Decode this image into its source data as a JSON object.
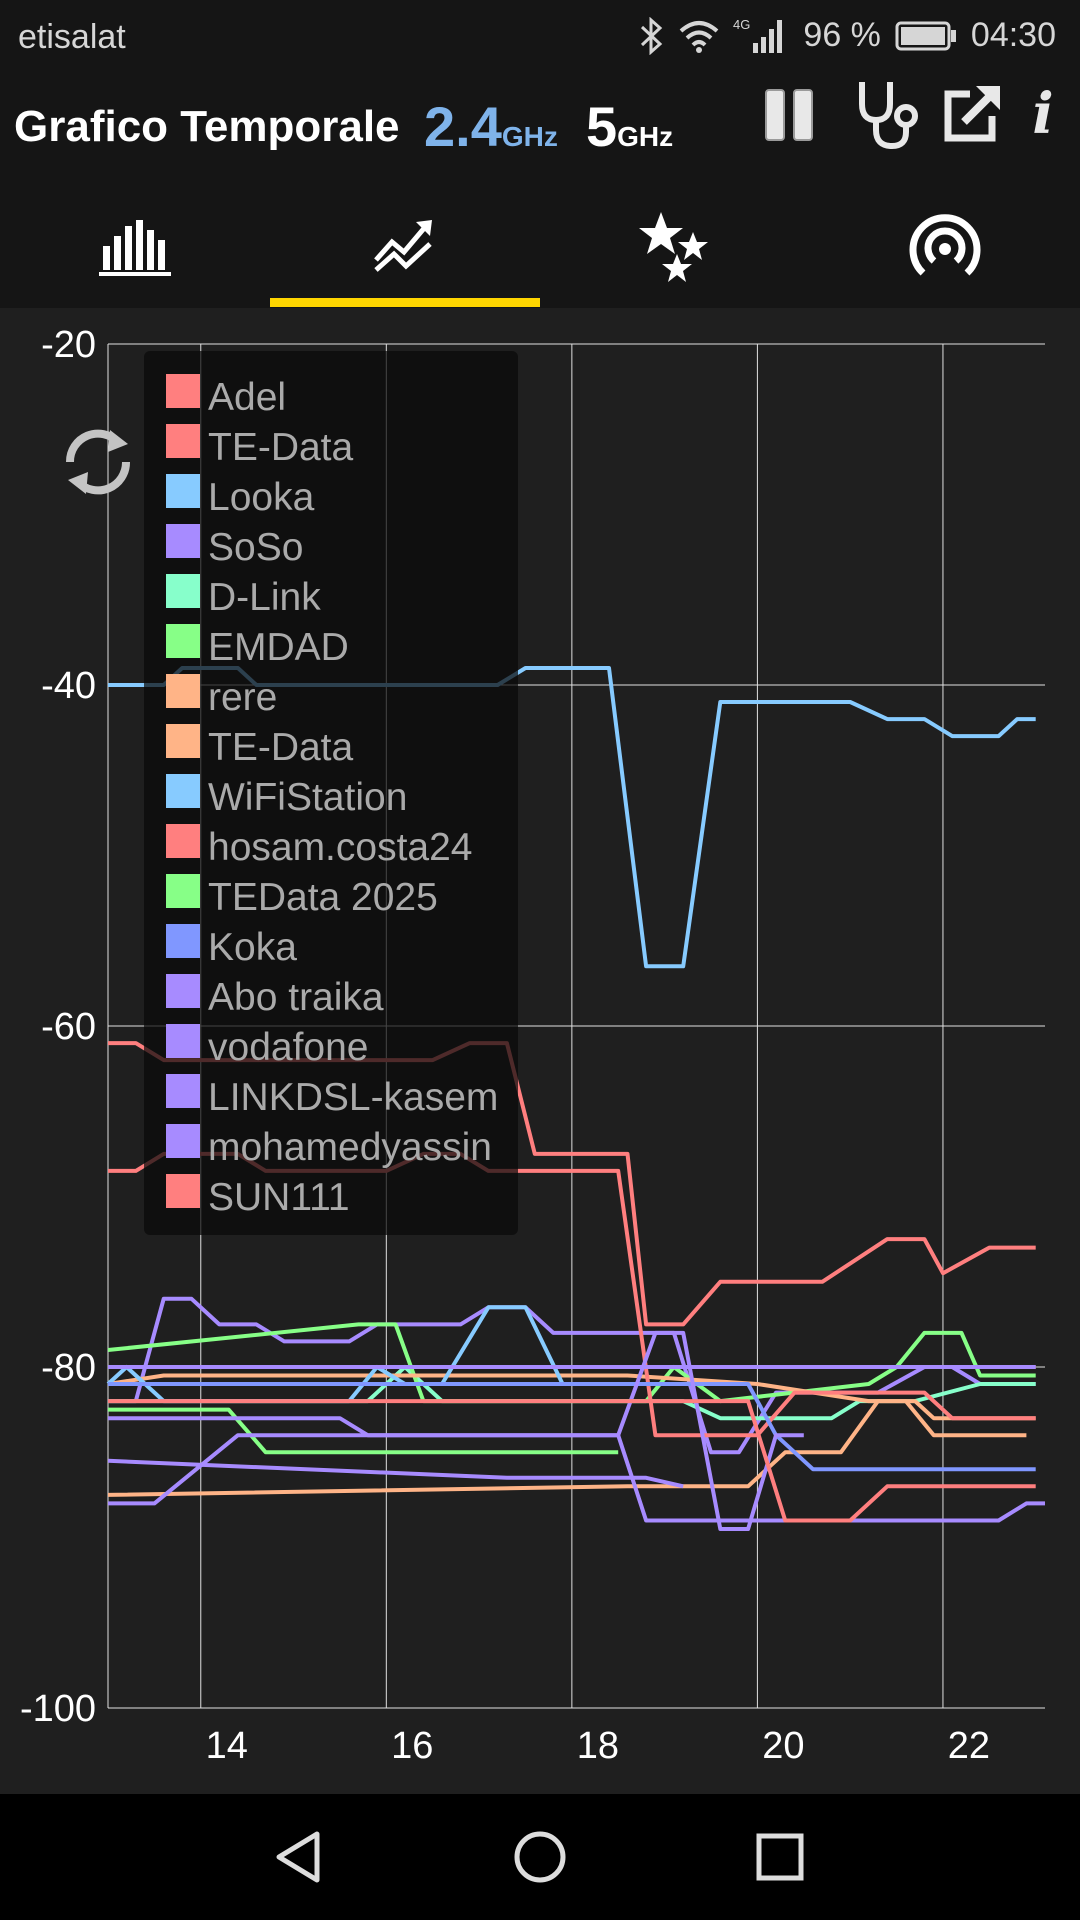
{
  "status_bar": {
    "carrier": "etisalat",
    "network": "4G",
    "battery": "96 %",
    "time": "04:30",
    "icons": [
      "bluetooth-icon",
      "wifi-icon",
      "signal-icon",
      "battery-icon"
    ]
  },
  "app_bar": {
    "title": "Grafico Temporale",
    "band_24_number": "2.4",
    "band_24_unit": "GHz",
    "band_5_number": "5",
    "band_5_unit": "GHz",
    "active_band": "2.4GHz",
    "actions": [
      "pause-icon",
      "stethoscope-icon",
      "share-icon",
      "info-icon"
    ],
    "info_label": "i"
  },
  "tabs": {
    "items": [
      "bar-graph-icon",
      "time-graph-icon",
      "rating-stars-icon",
      "access-point-icon"
    ],
    "selected_index": 1
  },
  "colors": {
    "background": "#1f1f1f",
    "toolbar": "#151515",
    "accent": "#ffd600",
    "band_24_active": "#7fb3ea"
  },
  "chart_data": {
    "type": "line",
    "xlim": [
      13,
      23.1
    ],
    "ylim": [
      -100,
      -20
    ],
    "x_ticks": [
      "14",
      "16",
      "18",
      "20",
      "22"
    ],
    "y_ticks": [
      "-20",
      "-40",
      "-60",
      "-80",
      "-100"
    ],
    "grid": true,
    "legend_placement": "top-left",
    "series": [
      {
        "name": "Adel",
        "color": "#ff7f7f",
        "points": [
          [
            13,
            -80
          ],
          [
            23,
            -80
          ]
        ]
      },
      {
        "name": "TE-Data",
        "color": "#ff7f7f",
        "points": [
          [
            13,
            -61
          ],
          [
            13.3,
            -61
          ],
          [
            13.6,
            -62
          ],
          [
            16.5,
            -62
          ],
          [
            16.9,
            -61
          ],
          [
            17.3,
            -61
          ],
          [
            17.6,
            -67.5
          ],
          [
            18.2,
            -67.5
          ],
          [
            18.6,
            -67.5
          ],
          [
            18.8,
            -77.5
          ],
          [
            19.2,
            -77.5
          ],
          [
            19.6,
            -75
          ],
          [
            20.5,
            -75
          ],
          [
            20.7,
            -75
          ],
          [
            21.4,
            -72.5
          ],
          [
            21.8,
            -72.5
          ],
          [
            22,
            -74.5
          ],
          [
            22.5,
            -73
          ],
          [
            23,
            -73
          ]
        ]
      },
      {
        "name": "Looka",
        "color": "#87cbff",
        "points": [
          [
            13,
            -40
          ],
          [
            13.6,
            -40
          ],
          [
            13.8,
            -39
          ],
          [
            14.4,
            -39
          ],
          [
            14.6,
            -40
          ],
          [
            17.2,
            -40
          ],
          [
            17.5,
            -39
          ],
          [
            18.4,
            -39
          ],
          [
            18.8,
            -56.5
          ],
          [
            19.2,
            -56.5
          ],
          [
            19.6,
            -41
          ],
          [
            21,
            -41
          ],
          [
            21.4,
            -42
          ],
          [
            21.8,
            -42
          ],
          [
            22.1,
            -43
          ],
          [
            22.6,
            -43
          ],
          [
            22.8,
            -42
          ],
          [
            23,
            -42
          ]
        ]
      },
      {
        "name": "SoSo",
        "color": "#a78bff",
        "points": [
          [
            13,
            -82
          ],
          [
            13.3,
            -82
          ],
          [
            13.6,
            -76
          ],
          [
            13.9,
            -76
          ],
          [
            14.2,
            -77.5
          ],
          [
            14.6,
            -77.5
          ],
          [
            14.9,
            -78.5
          ],
          [
            15.6,
            -78.5
          ],
          [
            15.9,
            -77.5
          ],
          [
            16.8,
            -77.5
          ],
          [
            17.1,
            -76.5
          ],
          [
            17.5,
            -76.5
          ],
          [
            17.8,
            -78
          ],
          [
            18.5,
            -78
          ],
          [
            19.1,
            -78
          ],
          [
            19.5,
            -85
          ],
          [
            19.8,
            -85
          ],
          [
            20.2,
            -81.5
          ],
          [
            20.5,
            -81.5
          ],
          [
            21.3,
            -81.5
          ],
          [
            21.8,
            -80
          ],
          [
            22.1,
            -80
          ],
          [
            22.4,
            -81
          ],
          [
            23,
            -81
          ]
        ]
      },
      {
        "name": "D-Link",
        "color": "#87ffcb",
        "points": [
          [
            13,
            -82
          ],
          [
            13.4,
            -82
          ],
          [
            15.8,
            -82
          ],
          [
            16.2,
            -80
          ],
          [
            16.6,
            -82
          ],
          [
            18.8,
            -82
          ],
          [
            19.2,
            -82
          ],
          [
            19.6,
            -83
          ],
          [
            20.8,
            -83
          ],
          [
            21.1,
            -82
          ],
          [
            21.7,
            -82
          ],
          [
            22.4,
            -81
          ],
          [
            23,
            -81
          ]
        ]
      },
      {
        "name": "EMDAD",
        "color": "#87ff87",
        "points": [
          [
            13,
            -79
          ],
          [
            15.7,
            -77.5
          ],
          [
            16.1,
            -77.5
          ],
          [
            16.4,
            -82
          ],
          [
            18.5,
            -82
          ],
          [
            18.8,
            -82
          ],
          [
            19.1,
            -80
          ],
          [
            19.6,
            -82
          ],
          [
            21.2,
            -81
          ],
          [
            21.5,
            -80
          ],
          [
            21.8,
            -78
          ],
          [
            22.2,
            -78
          ],
          [
            22.4,
            -80.5
          ],
          [
            23,
            -80.5
          ]
        ]
      },
      {
        "name": "rere",
        "color": "#ffb487",
        "points": [
          [
            13,
            -81
          ],
          [
            13.6,
            -80.5
          ],
          [
            18.6,
            -80.5
          ],
          [
            20,
            -81
          ],
          [
            21.2,
            -82
          ],
          [
            21.7,
            -82
          ],
          [
            21.9,
            -83
          ],
          [
            23,
            -83
          ]
        ]
      },
      {
        "name": "TE-Data",
        "color": "#ffb487",
        "points": [
          [
            13,
            -87.5
          ],
          [
            18.6,
            -87
          ],
          [
            19.9,
            -87
          ],
          [
            20.3,
            -85
          ],
          [
            20.9,
            -85
          ],
          [
            21.3,
            -82
          ],
          [
            21.6,
            -82
          ],
          [
            21.9,
            -84
          ],
          [
            22.9,
            -84
          ]
        ]
      },
      {
        "name": "WiFiStation",
        "color": "#87cbff",
        "points": [
          [
            13,
            -81
          ],
          [
            13.2,
            -80
          ],
          [
            13.6,
            -82
          ],
          [
            15.6,
            -82
          ],
          [
            15.9,
            -80
          ],
          [
            16.2,
            -81
          ],
          [
            16.6,
            -81
          ],
          [
            17.1,
            -76.5
          ],
          [
            17.5,
            -76.5
          ],
          [
            17.9,
            -81
          ]
        ]
      },
      {
        "name": "hosam.costa24",
        "color": "#ff7f7f",
        "points": [
          [
            13,
            -68.5
          ],
          [
            13.3,
            -68.5
          ],
          [
            13.6,
            -67.5
          ],
          [
            14.4,
            -67.5
          ],
          [
            14.7,
            -68.5
          ],
          [
            15.5,
            -68.5
          ],
          [
            16,
            -68.5
          ],
          [
            16.4,
            -67.5
          ],
          [
            16.8,
            -67.5
          ],
          [
            17.1,
            -68.5
          ],
          [
            18.5,
            -68.5
          ],
          [
            18.9,
            -84
          ],
          [
            20,
            -84
          ],
          [
            20.4,
            -81.5
          ],
          [
            21.3,
            -81.5
          ],
          [
            21.8,
            -81.5
          ],
          [
            22.1,
            -83
          ],
          [
            23,
            -83
          ]
        ]
      },
      {
        "name": "TEData 2025",
        "color": "#87ff87",
        "points": [
          [
            13,
            -82.5
          ],
          [
            14.3,
            -82.5
          ],
          [
            14.7,
            -85
          ],
          [
            18.5,
            -85
          ]
        ]
      },
      {
        "name": "Koka",
        "color": "#8097ff",
        "points": [
          [
            13,
            -81
          ],
          [
            18.6,
            -81
          ],
          [
            19.9,
            -81
          ],
          [
            20.2,
            -84
          ],
          [
            20.6,
            -86
          ],
          [
            23,
            -86
          ]
        ]
      },
      {
        "name": "Abo traika",
        "color": "#a78bff",
        "points": [
          [
            13,
            -88
          ],
          [
            13.5,
            -88
          ],
          [
            14.4,
            -84
          ],
          [
            18.5,
            -84
          ],
          [
            18.9,
            -78
          ],
          [
            19.2,
            -78
          ],
          [
            19.6,
            -89.5
          ],
          [
            19.9,
            -89.5
          ],
          [
            20.2,
            -84
          ],
          [
            20.5,
            -84
          ]
        ]
      },
      {
        "name": "vodafone",
        "color": "#a78bff",
        "points": [
          [
            13,
            -80
          ],
          [
            23,
            -80
          ]
        ]
      },
      {
        "name": "LINKDSL-kasem",
        "color": "#a78bff",
        "points": [
          [
            13,
            -85.5
          ],
          [
            17.3,
            -86.5
          ],
          [
            18.2,
            -86.5
          ],
          [
            18.8,
            -86.5
          ],
          [
            19.2,
            -87
          ]
        ]
      },
      {
        "name": "mohamedyassin",
        "color": "#a78bff",
        "points": [
          [
            13,
            -83
          ],
          [
            15.5,
            -83
          ],
          [
            15.8,
            -84
          ],
          [
            18.5,
            -84
          ],
          [
            18.8,
            -89
          ],
          [
            21.8,
            -89
          ],
          [
            22.6,
            -89
          ],
          [
            22.9,
            -88
          ],
          [
            23.1,
            -88
          ]
        ]
      },
      {
        "name": "SUN111",
        "color": "#ff7f7f",
        "points": [
          [
            13,
            -82
          ],
          [
            19.9,
            -82
          ],
          [
            20.3,
            -89
          ],
          [
            21,
            -89
          ],
          [
            21.4,
            -87
          ],
          [
            22.5,
            -87
          ],
          [
            23,
            -87
          ]
        ]
      }
    ]
  },
  "navigation": {
    "buttons": [
      "back-icon",
      "home-icon",
      "recents-icon"
    ]
  }
}
